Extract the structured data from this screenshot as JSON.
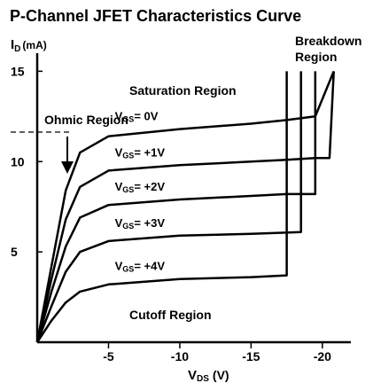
{
  "chart_data": {
    "type": "line",
    "title": "P-Channel JFET Characteristics Curve",
    "ylabel": {
      "main": "I",
      "sub": "D",
      "unit": "(mA)"
    },
    "xlabel": {
      "main": "V",
      "sub": "DS",
      "unit": "(V)"
    },
    "xlim": [
      0,
      -22
    ],
    "ylim": [
      0,
      16
    ],
    "xticks": [
      {
        "value": -5,
        "label": "-5"
      },
      {
        "value": -10,
        "label": "-10"
      },
      {
        "value": -15,
        "label": "-15"
      },
      {
        "value": -20,
        "label": "-20"
      }
    ],
    "yticks": [
      {
        "value": 5,
        "label": "5"
      },
      {
        "value": 10,
        "label": "10"
      },
      {
        "value": 15,
        "label": "15"
      }
    ],
    "series": [
      {
        "name": "VGS= 0V",
        "vgs_main": "V",
        "vgs_sub": "GS",
        "vgs_value": "= 0V",
        "x": [
          0,
          -1,
          -2,
          -3,
          -5,
          -10,
          -15,
          -17.5,
          -19.5,
          -20.8
        ],
        "y": [
          0,
          4.2,
          8.4,
          10.5,
          11.4,
          11.8,
          12.1,
          12.3,
          12.5,
          15
        ],
        "breakdown_x": -20.8
      },
      {
        "name": "VGS= +1V",
        "vgs_main": "V",
        "vgs_sub": "GS",
        "vgs_value": "= +1V",
        "x": [
          0,
          -1,
          -2,
          -3,
          -5,
          -10,
          -15,
          -17.5,
          -19.5,
          -20.5,
          -20.8
        ],
        "y": [
          0,
          3.5,
          6.8,
          8.6,
          9.5,
          9.8,
          10.0,
          10.1,
          10.2,
          10.2,
          15
        ],
        "breakdown_x": -20.5
      },
      {
        "name": "VGS= +2V",
        "vgs_main": "V",
        "vgs_sub": "GS",
        "vgs_value": "= +2V",
        "x": [
          0,
          -1,
          -2,
          -3,
          -5,
          -10,
          -15,
          -17.5,
          -19.5,
          -19.5
        ],
        "y": [
          0,
          2.8,
          5.3,
          6.9,
          7.6,
          7.9,
          8.1,
          8.2,
          8.2,
          15
        ],
        "breakdown_x": -19.5
      },
      {
        "name": "VGS= +3V",
        "vgs_main": "V",
        "vgs_sub": "GS",
        "vgs_value": "= +3V",
        "x": [
          0,
          -1,
          -2,
          -3,
          -5,
          -10,
          -15,
          -18.5,
          -18.5
        ],
        "y": [
          0,
          2.0,
          3.9,
          5.0,
          5.6,
          5.9,
          6.0,
          6.1,
          15
        ],
        "breakdown_x": -18.5
      },
      {
        "name": "VGS= +4V",
        "vgs_main": "V",
        "vgs_sub": "GS",
        "vgs_value": "= +4V",
        "x": [
          0,
          -1,
          -2,
          -3,
          -5,
          -10,
          -15,
          -17.5,
          -17.5
        ],
        "y": [
          0,
          1.2,
          2.2,
          2.8,
          3.2,
          3.5,
          3.6,
          3.7,
          15
        ],
        "breakdown_x": -17.5
      }
    ],
    "annotations": {
      "saturation": "Saturation Region",
      "ohmic": "Ohmic Region",
      "breakdown_line1": "Breakdown",
      "breakdown_line2": "Region",
      "cutoff": "Cutoff Region"
    },
    "grid": false
  }
}
